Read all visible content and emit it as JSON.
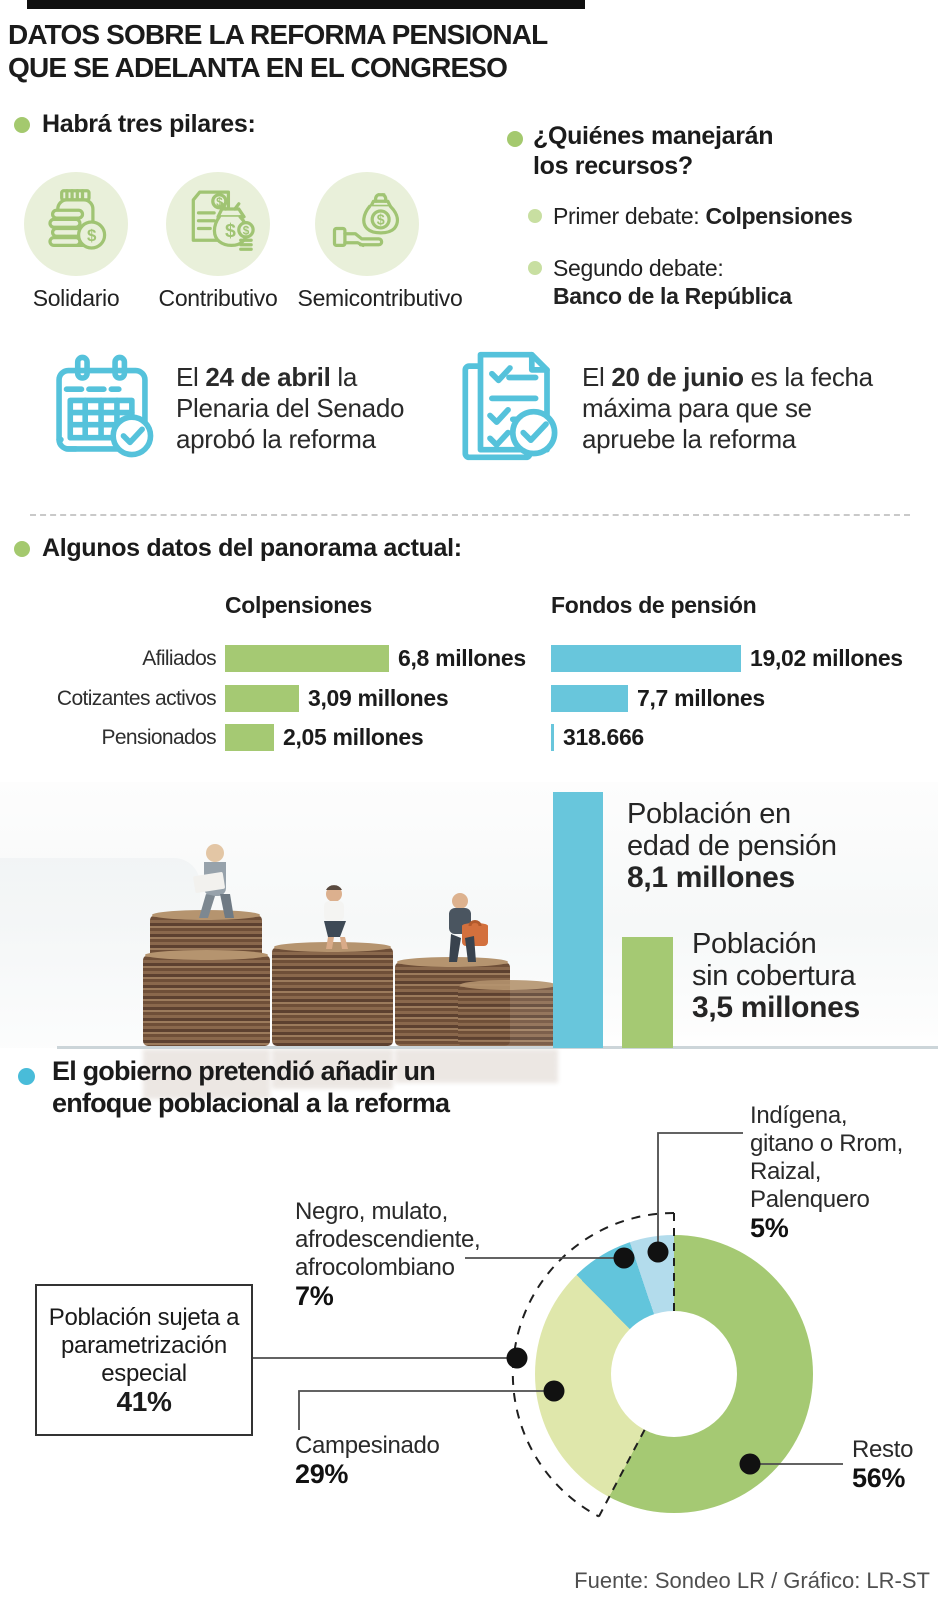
{
  "colors": {
    "green": "#a5c973",
    "pale_green": "#dfe7ab",
    "blue": "#68c6dc",
    "light_blue": "#b3dcec",
    "icon_green": "#a0c473",
    "icon_green_bg": "#e9f0da",
    "icon_blue": "#55c2db",
    "bullet_blue": "#49bcd9"
  },
  "header": {
    "title1": "DATOS SOBRE LA REFORMA PENSIONAL",
    "title2": "QUE SE ADELANTA EN EL CONGRESO"
  },
  "pillars": {
    "heading": "Habrá tres pilares:",
    "items": [
      {
        "name": "Solidario",
        "icon": "coins-jar-icon"
      },
      {
        "name": "Contributivo",
        "icon": "document-money-bag-icon"
      },
      {
        "name": "Semicontributivo",
        "icon": "hand-money-bag-icon"
      }
    ]
  },
  "resources": {
    "heading1": "¿Quiénes manejarán",
    "heading2": "los recursos?",
    "debates": [
      {
        "label": "Primer debate: ",
        "value": "Colpensiones"
      },
      {
        "label": "Segundo debate:",
        "value": "Banco de la República"
      }
    ]
  },
  "milestones": [
    {
      "icon": "calendar-check-icon",
      "prefix": "El ",
      "highlight": "24 de abril",
      "rest": " la Plenaria del Senado aprobó la reforma"
    },
    {
      "icon": "checklist-check-icon",
      "prefix": "El ",
      "highlight": "20 de junio",
      "rest": " es la fecha máxima para que se apruebe la reforma"
    }
  ],
  "panorama": {
    "heading": "Algunos datos del panorama actual:"
  },
  "population": {
    "labels": [
      {
        "l1": "Población en",
        "l2": "edad de pensión"
      },
      {
        "l1": "Población",
        "l2": "sin cobertura"
      }
    ]
  },
  "focus": {
    "heading1": "El gobierno pretendió añadir un",
    "heading2": "enfoque poblacional a la reforma",
    "box": {
      "l1": "Población sujeta a",
      "l2": "parametrización",
      "l3": "especial",
      "pct": "41%"
    },
    "labels": {
      "indigena": {
        "l1": "Indígena,",
        "l2": "gitano o Rrom,",
        "l3": "Raizal, Palenquero",
        "pct": "5%"
      },
      "negro": {
        "l1": "Negro, mulato,",
        "l2": "afrodescendiente,",
        "l3": "afrocolombiano",
        "pct": "7%"
      },
      "campesinado": {
        "l1": "Campesinado",
        "pct": "29%"
      },
      "resto": {
        "l1": "Resto",
        "pct": "56%"
      }
    }
  },
  "footer": {
    "source": "Fuente: Sondeo LR / Gráfico: LR-ST"
  },
  "chart_data": [
    {
      "type": "bar",
      "orientation": "horizontal",
      "title": "Algunos datos del panorama actual",
      "categories": [
        "Afiliados",
        "Cotizantes activos",
        "Pensionados"
      ],
      "series": [
        {
          "name": "Colpensiones",
          "unit": "millones",
          "values": [
            6.8,
            3.09,
            2.05
          ],
          "labels": [
            "6,8 millones",
            "3,09 millones",
            "2,05 millones"
          ],
          "color": "#a5c973"
        },
        {
          "name": "Fondos de pensión",
          "unit": "millones",
          "values": [
            19.02,
            7.7,
            0.318666
          ],
          "labels": [
            "19,02 millones",
            "7,7 millones",
            "318.666"
          ],
          "color": "#68c6dc"
        }
      ]
    },
    {
      "type": "bar",
      "orientation": "vertical",
      "categories": [
        "Población en edad de pensión",
        "Población sin cobertura"
      ],
      "values": [
        8.1,
        3.5
      ],
      "labels": [
        "8,1 millones",
        "3,5 millones"
      ],
      "colors": [
        "#68c6dc",
        "#a5c973"
      ],
      "unit": "millones"
    },
    {
      "type": "pie",
      "title": "El gobierno pretendió añadir un enfoque poblacional a la reforma",
      "slices": [
        {
          "label": "Resto",
          "pct": 56,
          "color": "#a5c973"
        },
        {
          "label": "Campesinado",
          "pct": 29,
          "color": "#dfe7ab"
        },
        {
          "label": "Negro, mulato, afrodescendiente, afrocolombiano",
          "pct": 7,
          "color": "#62c5dc"
        },
        {
          "label": "Indígena, gitano o Rrom, Raizal, Palenquero",
          "pct": 5,
          "color": "#b3dcec"
        }
      ],
      "annotation": {
        "label": "Población sujeta a parametrización especial",
        "pct": 41
      }
    }
  ]
}
